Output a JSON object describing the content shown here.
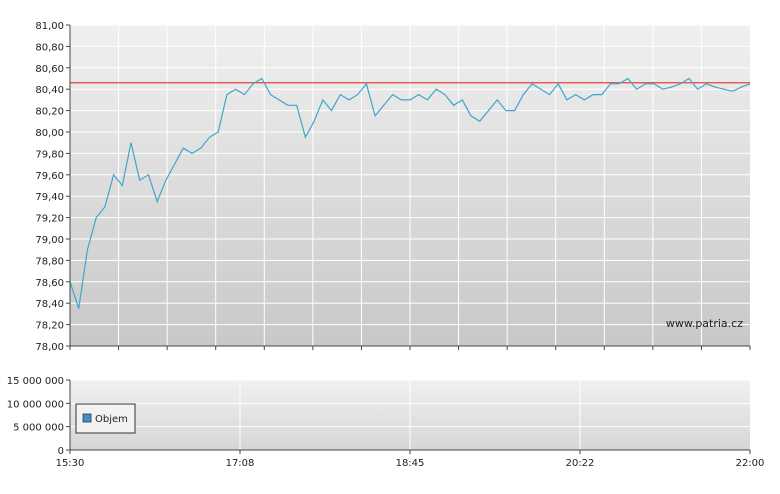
{
  "watermark": "www.patria.cz",
  "colors": {
    "price_line": "#3ea6cc",
    "reference_line": "#e0453c",
    "volume_legend_swatch": "#3e8fd0",
    "panel_top": "#f0f0f0",
    "panel_bottom": "#c8c8c8"
  },
  "chart_data": [
    {
      "type": "line",
      "name": "price",
      "ylim": [
        78.0,
        81.0
      ],
      "y_ticks": [
        "78,00",
        "78,20",
        "78,40",
        "78,60",
        "78,80",
        "79,00",
        "79,20",
        "79,40",
        "79,60",
        "79,80",
        "80,00",
        "80,20",
        "80,40",
        "80,60",
        "80,80",
        "81,00"
      ],
      "x_range": [
        "15:30",
        "22:00"
      ],
      "reference_value": 80.46,
      "grid": true,
      "series": [
        {
          "x": [
            "15:30",
            "15:35",
            "15:40",
            "15:45",
            "15:50",
            "15:55",
            "16:00",
            "16:05",
            "16:10",
            "16:15",
            "16:20",
            "16:25",
            "16:30",
            "16:35",
            "16:40",
            "16:45",
            "16:50",
            "16:55",
            "17:00",
            "17:05",
            "17:10",
            "17:15",
            "17:20",
            "17:25",
            "17:30",
            "17:35",
            "17:40",
            "17:45",
            "17:50",
            "17:55",
            "18:00",
            "18:05",
            "18:10",
            "18:15",
            "18:20",
            "18:25",
            "18:30",
            "18:35",
            "18:40",
            "18:45",
            "18:50",
            "18:55",
            "19:00",
            "19:05",
            "19:10",
            "19:15",
            "19:20",
            "19:25",
            "19:30",
            "19:35",
            "19:40",
            "19:45",
            "19:50",
            "19:55",
            "20:00",
            "20:05",
            "20:10",
            "20:15",
            "20:20",
            "20:25",
            "20:30",
            "20:35",
            "20:40",
            "20:45",
            "20:50",
            "20:55",
            "21:00",
            "21:05",
            "21:10",
            "21:15",
            "21:20",
            "21:25",
            "21:30",
            "21:35",
            "21:40",
            "21:45",
            "21:50",
            "21:55",
            "22:00"
          ],
          "values": [
            78.6,
            78.35,
            78.9,
            79.2,
            79.3,
            79.6,
            79.5,
            79.9,
            79.55,
            79.6,
            79.35,
            79.55,
            79.7,
            79.85,
            79.8,
            79.85,
            79.95,
            80.0,
            80.35,
            80.4,
            80.35,
            80.45,
            80.5,
            80.35,
            80.3,
            80.25,
            80.25,
            79.95,
            80.1,
            80.3,
            80.2,
            80.35,
            80.3,
            80.35,
            80.45,
            80.15,
            80.25,
            80.35,
            80.3,
            80.3,
            80.35,
            80.3,
            80.4,
            80.35,
            80.25,
            80.3,
            80.15,
            80.1,
            80.2,
            80.3,
            80.2,
            80.2,
            80.35,
            80.45,
            80.4,
            80.35,
            80.45,
            80.3,
            80.35,
            80.3,
            80.35,
            80.35,
            80.45,
            80.45,
            80.5,
            80.4,
            80.45,
            80.45,
            80.4,
            80.42,
            80.45,
            80.5,
            80.4,
            80.45,
            80.42,
            80.4,
            80.38,
            80.42,
            80.45
          ]
        }
      ]
    },
    {
      "type": "bar",
      "name": "volume",
      "ylim": [
        0,
        15000000
      ],
      "y_ticks": [
        "0",
        "5 000 000",
        "10 000 000",
        "15 000 000"
      ],
      "x_ticks": [
        "15:30",
        "17:08",
        "18:45",
        "20:22",
        "22:00"
      ],
      "legend": "Objem",
      "legend_position": "left",
      "values": []
    }
  ]
}
